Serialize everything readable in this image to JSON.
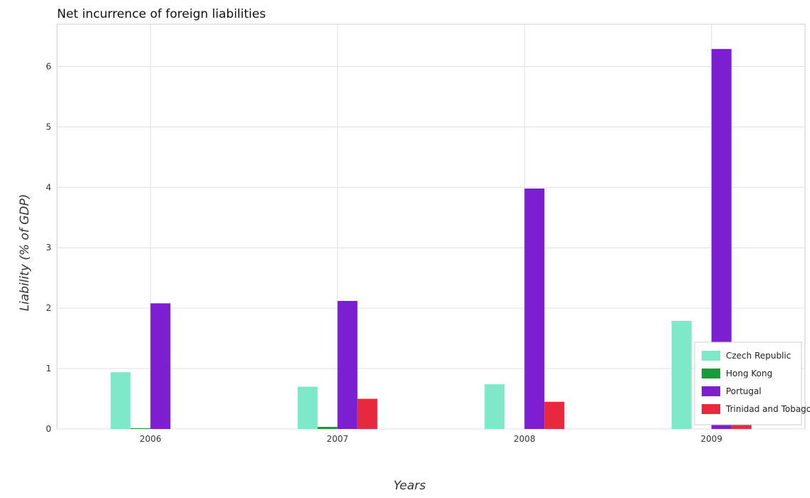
{
  "chart_data": {
    "type": "bar",
    "title": "Net incurrence of foreign liabilities",
    "xlabel": "Years",
    "ylabel": "Liability (% of GDP)",
    "categories": [
      "2006",
      "2007",
      "2008",
      "2009"
    ],
    "ylim": [
      0,
      6.7
    ],
    "yticks": [
      "0",
      "1",
      "2",
      "3",
      "4",
      "5",
      "6"
    ],
    "grid": true,
    "legend_position": "bottom-right",
    "series": [
      {
        "name": "Czech Republic",
        "color": "#7fe8c8",
        "values": [
          0.94,
          0.7,
          0.74,
          1.79
        ]
      },
      {
        "name": "Hong Kong",
        "color": "#1a9a3a",
        "values": [
          0.012,
          0.035,
          0,
          0
        ]
      },
      {
        "name": "Portugal",
        "color": "#7b1fd1",
        "values": [
          2.08,
          2.12,
          3.98,
          6.29
        ]
      },
      {
        "name": "Trinidad and Tobago",
        "color": "#e8283c",
        "values": [
          0,
          0.5,
          0.45,
          0.27
        ]
      }
    ]
  }
}
